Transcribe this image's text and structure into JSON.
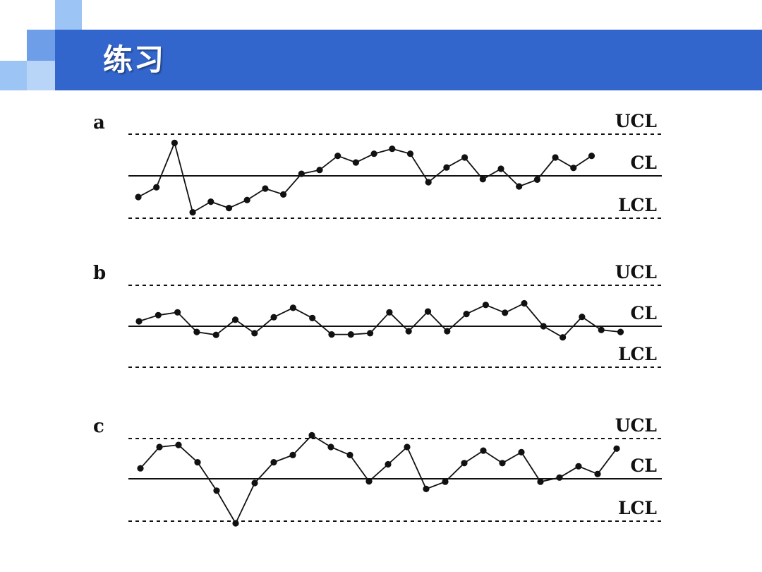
{
  "header": {
    "title": "练习"
  },
  "colors": {
    "title_bar": "#3366cc",
    "deco_light": "#9cc4f4",
    "deco_mid": "#6e9ee8",
    "deco_dark": "#3a6fd3",
    "line": "#111111"
  },
  "chart_data": [
    {
      "type": "line",
      "panel_label": "a",
      "control_lines": [
        "UCL",
        "CL",
        "LCL"
      ],
      "values": [
        -0.5,
        -0.27,
        0.79,
        -0.86,
        -0.61,
        -0.76,
        -0.57,
        -0.3,
        -0.44,
        0.05,
        0.14,
        0.48,
        0.32,
        0.53,
        0.65,
        0.53,
        -0.15,
        0.2,
        0.44,
        -0.08,
        0.17,
        -0.25,
        -0.09,
        0.44,
        0.19,
        0.48
      ],
      "ylim": [
        -1.05,
        1.05
      ]
    },
    {
      "type": "line",
      "panel_label": "b",
      "control_lines": [
        "UCL",
        "CL",
        "LCL"
      ],
      "values": [
        0.12,
        0.27,
        0.34,
        -0.14,
        -0.21,
        0.16,
        -0.17,
        0.22,
        0.45,
        0.2,
        -0.2,
        -0.2,
        -0.17,
        0.34,
        -0.12,
        0.36,
        -0.12,
        0.3,
        0.52,
        0.33,
        0.56,
        0.0,
        -0.27,
        0.23,
        -0.09,
        -0.14
      ],
      "ylim": [
        -1.05,
        1.05
      ]
    },
    {
      "type": "line",
      "panel_label": "c",
      "control_lines": [
        "UCL",
        "CL",
        "LCL"
      ],
      "values": [
        0.26,
        0.79,
        0.84,
        0.41,
        -0.28,
        -1.05,
        -0.1,
        0.41,
        0.59,
        1.08,
        0.79,
        0.59,
        -0.06,
        0.36,
        0.79,
        -0.24,
        -0.07,
        0.39,
        0.7,
        0.39,
        0.66,
        -0.07,
        0.03,
        0.31,
        0.12,
        0.75
      ],
      "ylim": [
        -1.1,
        1.1
      ]
    }
  ]
}
